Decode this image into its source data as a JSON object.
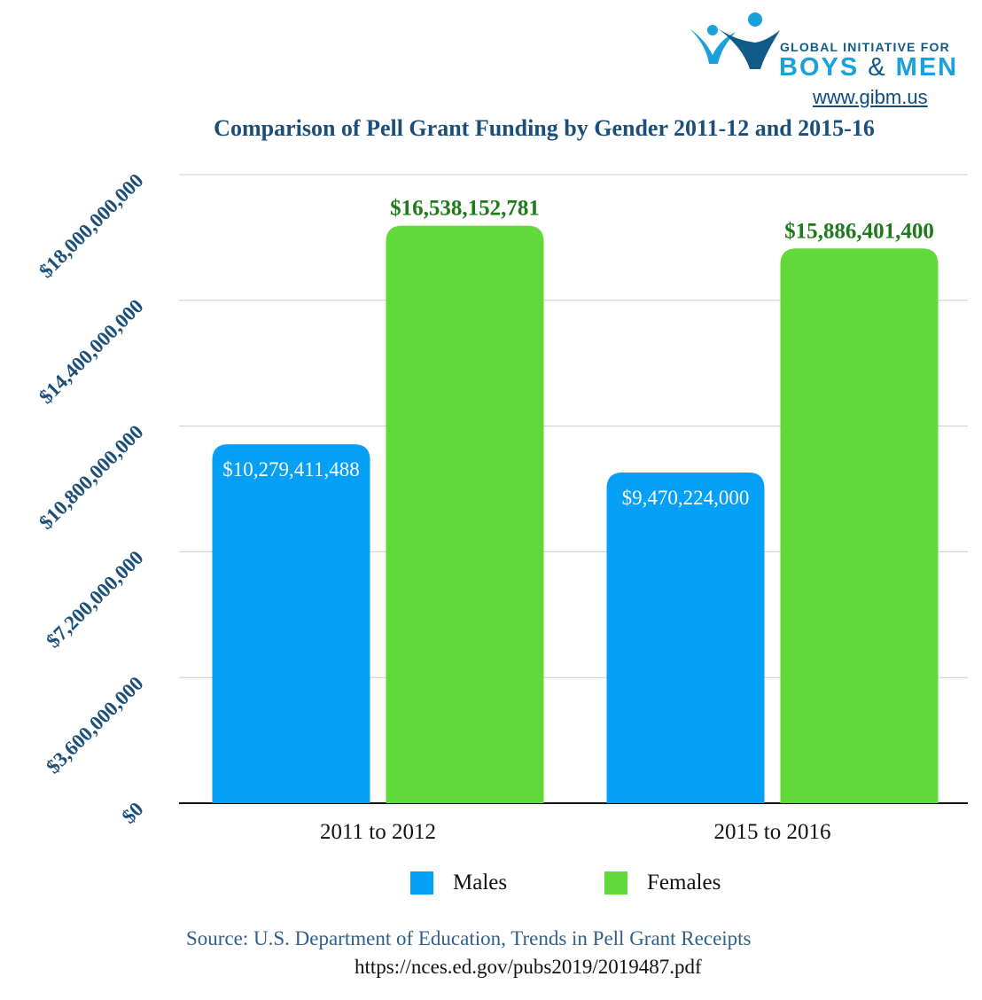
{
  "logo": {
    "line1": "GLOBAL INITIATIVE FOR",
    "boys": "BOYS",
    "amp": "&",
    "men": "MEN",
    "url": "www.gibm.us",
    "colors": {
      "dark": "#0f5a86",
      "light": "#1aa0dc"
    }
  },
  "chart_data": {
    "type": "bar",
    "title": "Comparison of Pell Grant Funding by Gender 2011-12 and 2015-16",
    "categories": [
      "2011 to 2012",
      "2015 to 2016"
    ],
    "series": [
      {
        "name": "Males",
        "values": [
          10279411488,
          9470224000
        ],
        "labels": [
          "$10,279,411,488",
          "$9,470,224,000"
        ],
        "color": "#049ff7",
        "label_color": "#ffffff",
        "label_position": "inside"
      },
      {
        "name": "Females",
        "values": [
          16538152781,
          15886401400
        ],
        "labels": [
          "$16,538,152,781",
          "$15,886,401,400"
        ],
        "color": "#62d93a",
        "label_color": "#1e7a1a",
        "label_position": "above"
      }
    ],
    "ylim": [
      0,
      18000000000
    ],
    "yticks": [
      0,
      3600000000,
      7200000000,
      10800000000,
      14400000000,
      18000000000
    ],
    "ytick_labels": [
      "$0",
      "$3,600,000,000",
      "$7,200,000,000",
      "$10,800,000,000",
      "$14,400,000,000",
      "$18,000,000,000"
    ],
    "xlabel": "",
    "ylabel": "",
    "grid": true,
    "legend": "bottom-center"
  },
  "source": {
    "text": "Source: U.S. Department of Education, Trends in Pell Grant Receipts",
    "url": "https://nces.ed.gov/pubs2019/2019487.pdf"
  }
}
